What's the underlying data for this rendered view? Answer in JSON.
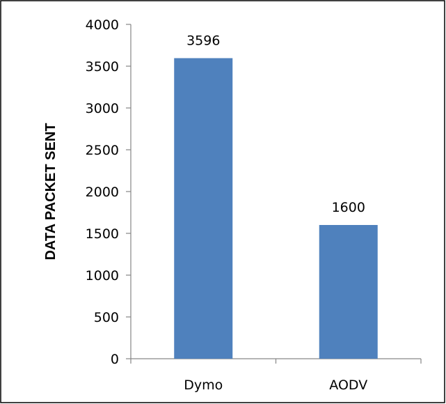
{
  "chart_data": {
    "type": "bar",
    "categories": [
      "Dymo",
      "AODV"
    ],
    "values": [
      3596,
      1600
    ],
    "data_labels": [
      "3596",
      "1600"
    ],
    "title": "",
    "xlabel": "",
    "ylabel": "DATA PACKET SENT",
    "ylim": [
      0,
      4000
    ],
    "yticks": [
      0,
      500,
      1000,
      1500,
      2000,
      2500,
      3000,
      3500,
      4000
    ],
    "ytick_labels": [
      "0",
      "500",
      "1000",
      "1500",
      "2000",
      "2500",
      "3000",
      "3500",
      "4000"
    ],
    "grid": false,
    "legend": "none",
    "bar_color": "#4f81bd",
    "axis_color": "#868686",
    "border_color": "#000000"
  }
}
